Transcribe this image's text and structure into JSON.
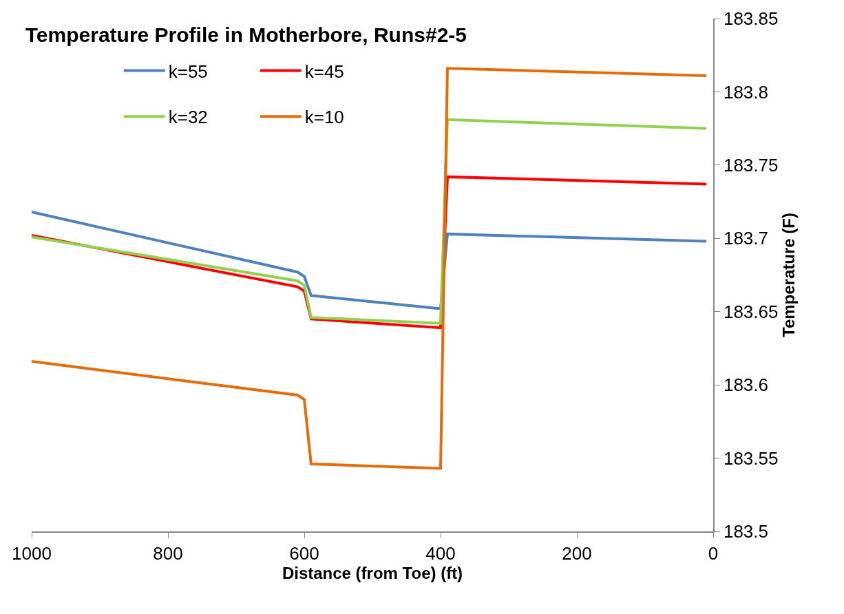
{
  "chart_data": {
    "type": "line",
    "title": "Temperature Profile in Motherbore, Runs#2-5",
    "xlabel": "Distance (from Toe) (ft)",
    "ylabel": "Temperature (F)",
    "x": [
      1000,
      610,
      600,
      590,
      400,
      390,
      10
    ],
    "series": [
      {
        "name": "k=55",
        "color": "#4f81bd",
        "values": [
          183.718,
          183.677,
          183.674,
          183.661,
          183.652,
          183.703,
          183.698
        ]
      },
      {
        "name": "k=45",
        "color": "#ff0000",
        "values": [
          183.702,
          183.667,
          183.664,
          183.645,
          183.639,
          183.742,
          183.737
        ]
      },
      {
        "name": "k=32",
        "color": "#92d050",
        "values": [
          183.701,
          183.671,
          183.668,
          183.646,
          183.642,
          183.781,
          183.775
        ]
      },
      {
        "name": "k=10",
        "color": "#e46c0a",
        "values": [
          183.616,
          183.593,
          183.59,
          183.546,
          183.543,
          183.816,
          183.811
        ]
      }
    ],
    "xlim": [
      1000,
      0
    ],
    "xticks": [
      1000,
      800,
      600,
      400,
      200,
      0
    ],
    "ylim": [
      183.5,
      183.85
    ],
    "yticks": [
      183.5,
      183.55,
      183.6,
      183.65,
      183.7,
      183.75,
      183.8,
      183.85
    ],
    "legend": "top left",
    "marker": "none",
    "line_style": "solid"
  }
}
